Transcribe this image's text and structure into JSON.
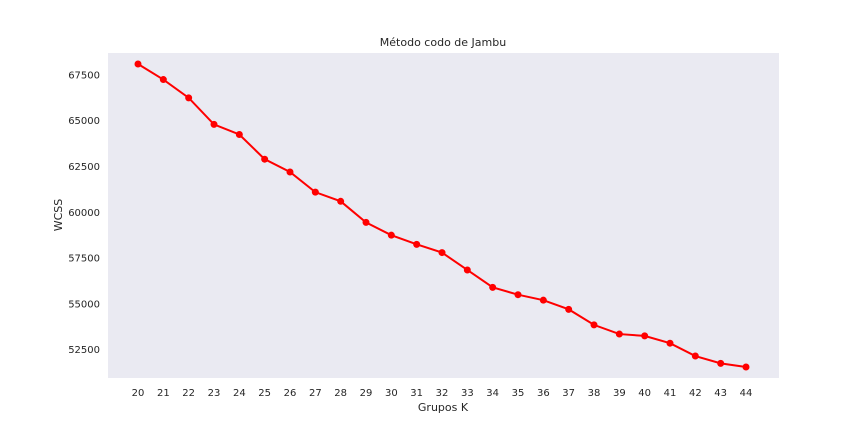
{
  "chart_data": {
    "type": "line",
    "title": "Método codo de Jambu",
    "xlabel": "Grupos K",
    "ylabel": "WCSS",
    "x": [
      20,
      21,
      22,
      23,
      24,
      25,
      26,
      27,
      28,
      29,
      30,
      31,
      32,
      33,
      34,
      35,
      36,
      37,
      38,
      39,
      40,
      41,
      42,
      43,
      44
    ],
    "series": [
      {
        "values": [
          68100,
          67250,
          66250,
          64800,
          64250,
          62900,
          62200,
          61100,
          60600,
          59450,
          58750,
          58250,
          57800,
          56850,
          55900,
          55500,
          55200,
          54700,
          53850,
          53350,
          53250,
          52850,
          52150,
          51750,
          51550
        ]
      }
    ],
    "yticks": [
      52500,
      55000,
      57500,
      60000,
      62500,
      65000,
      67500
    ],
    "ylim": [
      50950,
      68700
    ],
    "grid": false,
    "colors": {
      "line": "#ff0000",
      "plot_bg": "#eaeaf2"
    }
  }
}
